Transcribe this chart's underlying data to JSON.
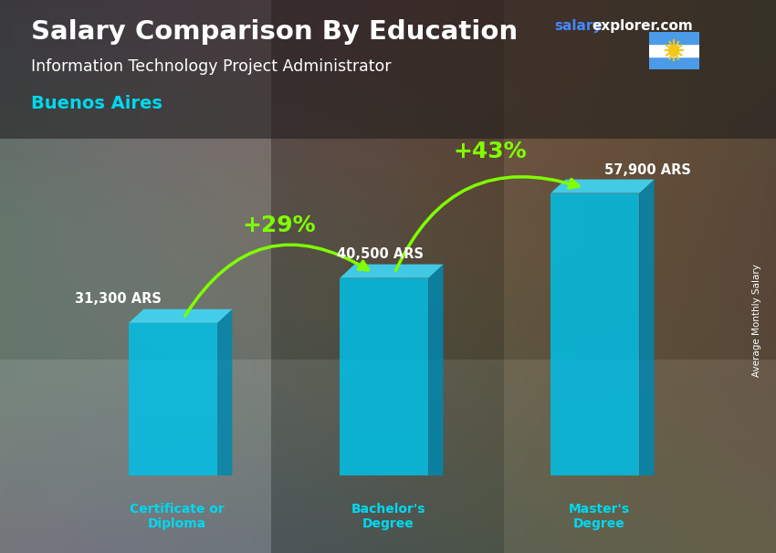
{
  "title": "Salary Comparison By Education",
  "subtitle_job": "Information Technology Project Administrator",
  "subtitle_location": "Buenos Aires",
  "watermark_salary": "salary",
  "watermark_rest": "explorer.com",
  "categories": [
    "Certificate or\nDiploma",
    "Bachelor's\nDegree",
    "Master's\nDegree"
  ],
  "values": [
    31300,
    40500,
    57900
  ],
  "value_labels": [
    "31,300 ARS",
    "40,500 ARS",
    "57,900 ARS"
  ],
  "pct_changes": [
    "+29%",
    "+43%"
  ],
  "bar_face_color": "#00c0e8",
  "bar_top_color": "#40d8f8",
  "bar_side_color": "#0088b0",
  "bg_color": "#3a3a3a",
  "title_color": "#ffffff",
  "subtitle_job_color": "#ffffff",
  "subtitle_location_color": "#00d8f0",
  "category_color": "#00d8f0",
  "value_color": "#ffffff",
  "pct_color": "#80ff00",
  "arrow_color": "#80ff00",
  "ylabel": "Average Monthly Salary",
  "ylabel_color": "#ffffff",
  "ylim": [
    0,
    68000
  ],
  "bar_width": 0.42,
  "bar_positions": [
    1.0,
    2.0,
    3.0
  ],
  "fig_width": 8.5,
  "fig_height": 6.06,
  "watermark_color_salary": "#4488ff",
  "watermark_color_rest": "#ffffff",
  "flag_colors": [
    "#4c9be8",
    "#ffffff",
    "#4c9be8"
  ],
  "sun_color": "#f5c518"
}
